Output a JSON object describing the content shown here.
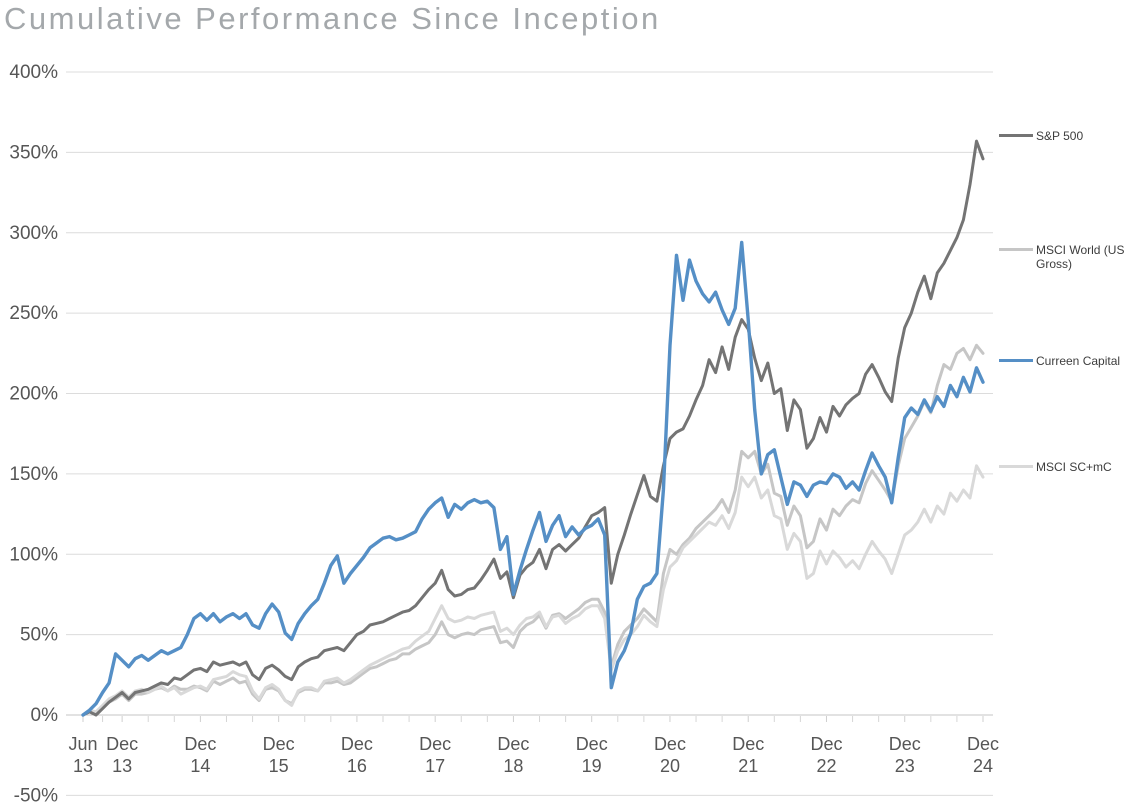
{
  "title": "Cumulative Performance Since Inception",
  "chart_data": {
    "type": "line",
    "title": "Cumulative Performance Since Inception",
    "x_unit": "month",
    "x_start": "Jun 2013",
    "x_end": "Dec 2024",
    "points_per_series": 139,
    "grid": "horizontal",
    "legend_position": "right",
    "y_axis": {
      "unit": "%",
      "min": -50,
      "max": 400,
      "ticks": [
        {
          "label": "400%",
          "value": 400
        },
        {
          "label": "350%",
          "value": 350
        },
        {
          "label": "300%",
          "value": 300
        },
        {
          "label": "250%",
          "value": 250
        },
        {
          "label": "200%",
          "value": 200
        },
        {
          "label": "150%",
          "value": 150
        },
        {
          "label": "100%",
          "value": 100
        },
        {
          "label": "50%",
          "value": 50
        },
        {
          "label": "0%",
          "value": 0
        },
        {
          "label": "-50%",
          "value": -50
        }
      ]
    },
    "x_axis": {
      "tick_labels": [
        {
          "m": "Jun",
          "y": "13",
          "t": 0
        },
        {
          "m": "Dec",
          "y": "13",
          "t": 6
        },
        {
          "m": "Dec",
          "y": "14",
          "t": 18
        },
        {
          "m": "Dec",
          "y": "15",
          "t": 30
        },
        {
          "m": "Dec",
          "y": "16",
          "t": 42
        },
        {
          "m": "Dec",
          "y": "17",
          "t": 54
        },
        {
          "m": "Dec",
          "y": "18",
          "t": 66
        },
        {
          "m": "Dec",
          "y": "19",
          "t": 78
        },
        {
          "m": "Dec",
          "y": "20",
          "t": 90
        },
        {
          "m": "Dec",
          "y": "21",
          "t": 102
        },
        {
          "m": "Dec",
          "y": "22",
          "t": 114
        },
        {
          "m": "Dec",
          "y": "23",
          "t": 126
        },
        {
          "m": "Dec",
          "y": "24",
          "t": 138
        }
      ]
    },
    "series": [
      {
        "name": "S&P 500",
        "color": "#747474",
        "values": [
          0,
          2,
          0,
          4,
          8,
          11,
          14,
          10,
          14,
          15,
          16,
          18,
          20,
          19,
          23,
          22,
          25,
          28,
          29,
          27,
          33,
          31,
          32,
          33,
          31,
          33,
          25,
          22,
          29,
          31,
          28,
          24,
          22,
          30,
          33,
          35,
          36,
          40,
          41,
          42,
          40,
          45,
          50,
          52,
          56,
          57,
          58,
          60,
          62,
          64,
          65,
          68,
          73,
          78,
          82,
          90,
          78,
          74,
          75,
          78,
          79,
          84,
          90,
          97,
          85,
          89,
          73,
          87,
          92,
          95,
          103,
          91,
          103,
          106,
          102,
          106,
          110,
          117,
          124,
          126,
          129,
          82,
          100,
          112,
          125,
          137,
          149,
          136,
          133,
          155,
          172,
          176,
          178,
          186,
          196,
          205,
          221,
          213,
          229,
          215,
          235,
          246,
          240,
          222,
          208,
          219,
          200,
          203,
          177,
          196,
          190,
          166,
          172,
          185,
          176,
          192,
          186,
          193,
          197,
          200,
          212,
          218,
          210,
          201,
          195,
          222,
          241,
          250,
          263,
          273,
          259,
          275,
          281,
          289,
          297,
          308,
          330,
          357,
          346
        ]
      },
      {
        "name": "MSCI World (US Gross)",
        "color": "#c6c6c6",
        "values": [
          0,
          2,
          1,
          5,
          8,
          10,
          13,
          9,
          13,
          13,
          14,
          16,
          17,
          15,
          18,
          16,
          16,
          18,
          17,
          15,
          21,
          19,
          21,
          23,
          20,
          21,
          13,
          9,
          16,
          17,
          15,
          9,
          7,
          14,
          16,
          16,
          15,
          20,
          20,
          21,
          19,
          20,
          23,
          26,
          29,
          30,
          32,
          34,
          35,
          38,
          38,
          41,
          43,
          45,
          50,
          58,
          50,
          48,
          50,
          51,
          50,
          53,
          54,
          55,
          45,
          46,
          42,
          52,
          56,
          58,
          62,
          54,
          62,
          63,
          60,
          63,
          66,
          70,
          72,
          72,
          64,
          30,
          44,
          52,
          56,
          60,
          66,
          62,
          58,
          88,
          103,
          100,
          106,
          110,
          116,
          120,
          124,
          128,
          134,
          126,
          140,
          164,
          160,
          164,
          150,
          156,
          138,
          136,
          118,
          130,
          124,
          104,
          108,
          122,
          115,
          128,
          124,
          130,
          134,
          132,
          144,
          152,
          146,
          140,
          133,
          155,
          172,
          179,
          186,
          195,
          188,
          205,
          218,
          215,
          225,
          228,
          221,
          230,
          225
        ]
      },
      {
        "name": "Curreen Capital",
        "color": "#558fc6",
        "values": [
          0,
          3,
          7,
          14,
          20,
          38,
          34,
          30,
          35,
          37,
          34,
          37,
          40,
          38,
          40,
          42,
          50,
          60,
          63,
          59,
          63,
          58,
          61,
          63,
          60,
          63,
          56,
          54,
          63,
          69,
          64,
          51,
          47,
          57,
          63,
          68,
          72,
          82,
          93,
          99,
          82,
          88,
          93,
          98,
          104,
          107,
          110,
          111,
          109,
          110,
          112,
          114,
          122,
          128,
          132,
          135,
          123,
          131,
          128,
          132,
          134,
          132,
          133,
          129,
          103,
          111,
          75,
          90,
          103,
          115,
          126,
          108,
          118,
          124,
          111,
          117,
          112,
          116,
          118,
          122,
          112,
          17,
          33,
          40,
          51,
          72,
          80,
          82,
          88,
          140,
          230,
          286,
          258,
          283,
          270,
          262,
          257,
          263,
          252,
          243,
          253,
          294,
          246,
          190,
          150,
          162,
          165,
          148,
          131,
          145,
          143,
          136,
          143,
          145,
          144,
          150,
          148,
          141,
          145,
          140,
          152,
          163,
          155,
          148,
          132,
          160,
          185,
          191,
          187,
          196,
          189,
          198,
          192,
          205,
          198,
          210,
          201,
          216,
          207
        ]
      },
      {
        "name": "MSCI SC+mC",
        "color": "#d9d9d9",
        "values": [
          0,
          3,
          2,
          6,
          10,
          12,
          15,
          11,
          15,
          16,
          14,
          16,
          18,
          15,
          17,
          13,
          15,
          17,
          18,
          16,
          22,
          23,
          24,
          27,
          25,
          24,
          15,
          10,
          17,
          19,
          16,
          9,
          6,
          15,
          17,
          17,
          15,
          21,
          22,
          23,
          20,
          22,
          25,
          28,
          31,
          33,
          35,
          37,
          39,
          41,
          42,
          46,
          49,
          52,
          60,
          68,
          60,
          58,
          59,
          61,
          60,
          62,
          63,
          64,
          52,
          54,
          50,
          56,
          60,
          61,
          64,
          55,
          61,
          62,
          57,
          60,
          62,
          66,
          68,
          68,
          60,
          28,
          40,
          47,
          50,
          55,
          62,
          58,
          55,
          78,
          92,
          96,
          104,
          108,
          112,
          116,
          120,
          118,
          124,
          116,
          126,
          148,
          142,
          148,
          135,
          140,
          124,
          122,
          103,
          113,
          108,
          85,
          88,
          102,
          94,
          102,
          98,
          92,
          96,
          91,
          100,
          108,
          102,
          97,
          88,
          100,
          112,
          115,
          120,
          128,
          120,
          130,
          125,
          138,
          133,
          140,
          135,
          155,
          148
        ]
      }
    ]
  }
}
